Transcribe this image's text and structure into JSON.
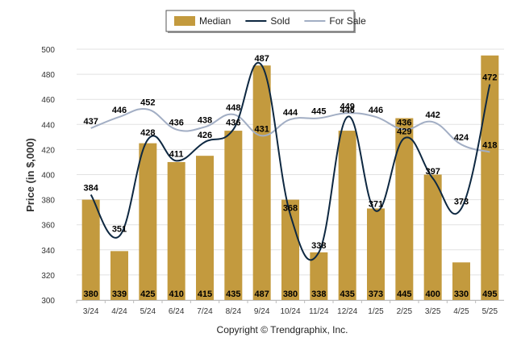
{
  "chart_data": {
    "type": "bar",
    "categories": [
      "3/24",
      "4/24",
      "5/24",
      "6/24",
      "7/24",
      "8/24",
      "9/24",
      "10/24",
      "11/24",
      "12/24",
      "1/25",
      "2/25",
      "3/25",
      "4/25",
      "5/25"
    ],
    "series": [
      {
        "name": "Median",
        "kind": "bar",
        "color": "#C39A3E",
        "values": [
          380,
          339,
          425,
          410,
          415,
          435,
          487,
          380,
          338,
          435,
          373,
          445,
          400,
          330,
          495
        ]
      },
      {
        "name": "Sold",
        "kind": "line",
        "color": "#0E2841",
        "values": [
          384,
          351,
          428,
          411,
          426,
          436,
          487,
          368,
          338,
          446,
          371,
          429,
          397,
          373,
          472
        ]
      },
      {
        "name": "For Sale",
        "kind": "line",
        "color": "#A2AEC4",
        "values": [
          437,
          446,
          452,
          436,
          438,
          448,
          431,
          444,
          445,
          449,
          446,
          436,
          442,
          424,
          418
        ]
      }
    ],
    "ylabel": "Price (in $,000)",
    "ylim": [
      300,
      500
    ],
    "yticks": [
      300,
      320,
      340,
      360,
      380,
      400,
      420,
      440,
      460,
      480,
      500
    ],
    "grid": true,
    "legend_position": "top-center"
  },
  "copyright": "Copyright © Trendgraphix, Inc."
}
